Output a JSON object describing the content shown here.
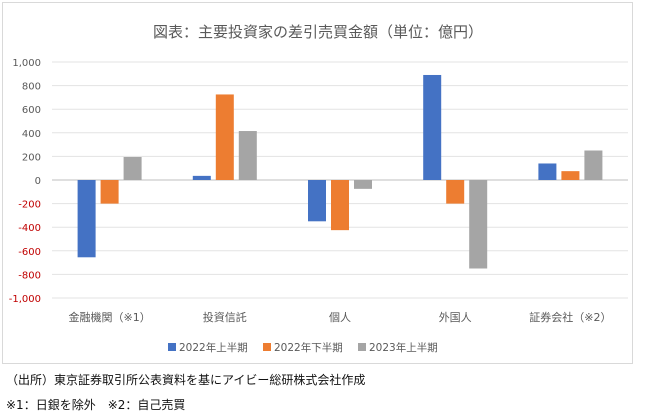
{
  "chart_data": {
    "type": "bar",
    "title": "図表：主要投資家の差引売買金額（単位：億円）",
    "categories": [
      "金融機関（※1）",
      "投資信託",
      "個人",
      "外国人",
      "証券会社（※2）"
    ],
    "series": [
      {
        "name": "2022年上半期",
        "color": "#4472c4",
        "values": [
          -655,
          35,
          -350,
          890,
          140
        ]
      },
      {
        "name": "2022年下半期",
        "color": "#ed7d31",
        "values": [
          -200,
          725,
          -425,
          -200,
          75
        ]
      },
      {
        "name": "2023年上半期",
        "color": "#a5a5a5",
        "values": [
          195,
          415,
          -75,
          -750,
          250
        ]
      }
    ],
    "ylim": [
      -1000,
      1000
    ],
    "yticks": [
      1000,
      800,
      600,
      400,
      200,
      0,
      -200,
      -400,
      -600,
      -800,
      -1000
    ],
    "ytick_labels": [
      "1,000",
      "800",
      "600",
      "400",
      "200",
      "0",
      "-200",
      "-400",
      "-600",
      "-800",
      "-1,000"
    ],
    "negative_tick_color": "#c00000",
    "gridlines": true,
    "legend_position": "bottom"
  },
  "notes": {
    "source": "（出所）東京証券取引所公表資料を基にアイビー総研株式会社作成",
    "footnote": "※1：日銀を除外　※2：自己売買"
  }
}
